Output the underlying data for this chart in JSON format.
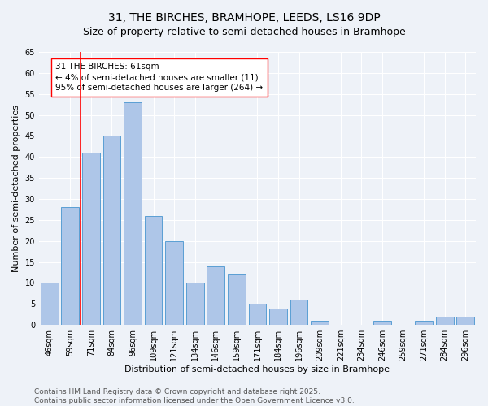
{
  "title1": "31, THE BIRCHES, BRAMHOPE, LEEDS, LS16 9DP",
  "title2": "Size of property relative to semi-detached houses in Bramhope",
  "xlabel": "Distribution of semi-detached houses by size in Bramhope",
  "ylabel": "Number of semi-detached properties",
  "categories": [
    "46sqm",
    "59sqm",
    "71sqm",
    "84sqm",
    "96sqm",
    "109sqm",
    "121sqm",
    "134sqm",
    "146sqm",
    "159sqm",
    "171sqm",
    "184sqm",
    "196sqm",
    "209sqm",
    "221sqm",
    "234sqm",
    "246sqm",
    "259sqm",
    "271sqm",
    "284sqm",
    "296sqm"
  ],
  "values": [
    10,
    28,
    41,
    45,
    53,
    26,
    20,
    10,
    14,
    12,
    5,
    4,
    6,
    1,
    0,
    0,
    1,
    0,
    1,
    2,
    2
  ],
  "bar_color": "#aec6e8",
  "bar_edge_color": "#5a9fd4",
  "red_line_x": 1.5,
  "annotation_text": "31 THE BIRCHES: 61sqm\n← 4% of semi-detached houses are smaller (11)\n95% of semi-detached houses are larger (264) →",
  "ylim": [
    0,
    65
  ],
  "yticks": [
    0,
    5,
    10,
    15,
    20,
    25,
    30,
    35,
    40,
    45,
    50,
    55,
    60,
    65
  ],
  "background_color": "#eef2f8",
  "footer_text": "Contains HM Land Registry data © Crown copyright and database right 2025.\nContains public sector information licensed under the Open Government Licence v3.0.",
  "title_fontsize": 10,
  "subtitle_fontsize": 9,
  "axis_label_fontsize": 8,
  "tick_fontsize": 7,
  "annotation_fontsize": 7.5,
  "footer_fontsize": 6.5
}
